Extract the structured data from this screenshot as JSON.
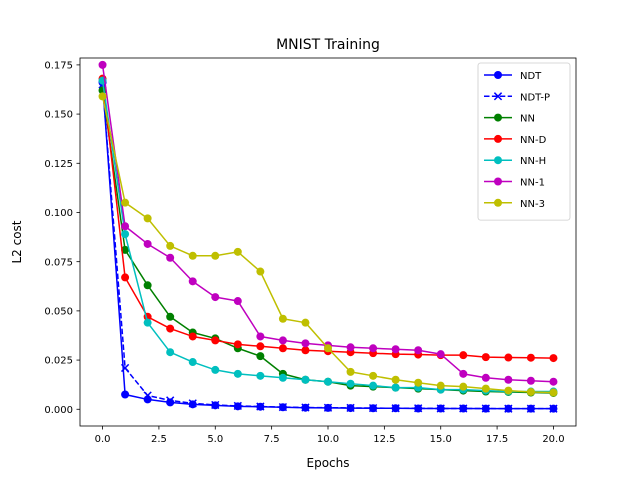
{
  "chart_data": {
    "type": "line",
    "title": "MNIST Training",
    "xlabel": "Epochs",
    "ylabel": "L2 cost",
    "xlim": [
      -1,
      21
    ],
    "ylim": [
      -0.0085,
      0.1785
    ],
    "xticks": [
      0.0,
      2.5,
      5.0,
      7.5,
      10.0,
      12.5,
      15.0,
      17.5,
      20.0
    ],
    "xtick_labels": [
      "0.0",
      "2.5",
      "5.0",
      "7.5",
      "10.0",
      "12.5",
      "15.0",
      "17.5",
      "20.0"
    ],
    "yticks": [
      0.0,
      0.025,
      0.05,
      0.075,
      0.1,
      0.125,
      0.15,
      0.175
    ],
    "ytick_labels": [
      "0.000",
      "0.025",
      "0.050",
      "0.075",
      "0.100",
      "0.125",
      "0.150",
      "0.175"
    ],
    "grid": false,
    "legend_position": "top-right",
    "x": [
      0,
      1,
      2,
      3,
      4,
      5,
      6,
      7,
      8,
      9,
      10,
      11,
      12,
      13,
      14,
      15,
      16,
      17,
      18,
      19,
      20
    ],
    "series": [
      {
        "name": "NDT",
        "color": "#0000ff",
        "marker": "circle",
        "linestyle": "solid",
        "values": [
          0.166,
          0.0075,
          0.005,
          0.0035,
          0.0025,
          0.002,
          0.0015,
          0.0013,
          0.001,
          0.0008,
          0.0007,
          0.0006,
          0.0005,
          0.0005,
          0.0004,
          0.0004,
          0.0004,
          0.0003,
          0.0003,
          0.0003,
          0.0003
        ]
      },
      {
        "name": "NDT-P",
        "color": "#0000ff",
        "marker": "x",
        "linestyle": "dashed",
        "values": [
          0.165,
          0.021,
          0.007,
          0.0045,
          0.003,
          0.0022,
          0.0017,
          0.0014,
          0.0011,
          0.0009,
          0.0008,
          0.0007,
          0.0006,
          0.0005,
          0.0005,
          0.0004,
          0.0004,
          0.0004,
          0.0003,
          0.0003,
          0.0003
        ]
      },
      {
        "name": "NN",
        "color": "#008000",
        "marker": "circle",
        "linestyle": "solid",
        "values": [
          0.162,
          0.081,
          0.063,
          0.047,
          0.039,
          0.036,
          0.031,
          0.027,
          0.018,
          0.015,
          0.014,
          0.012,
          0.0115,
          0.011,
          0.0105,
          0.01,
          0.0095,
          0.009,
          0.0088,
          0.0085,
          0.0083
        ]
      },
      {
        "name": "NN-D",
        "color": "#ff0000",
        "marker": "circle",
        "linestyle": "solid",
        "values": [
          0.168,
          0.067,
          0.047,
          0.041,
          0.037,
          0.035,
          0.033,
          0.032,
          0.031,
          0.03,
          0.0295,
          0.029,
          0.0285,
          0.028,
          0.0278,
          0.0275,
          0.0275,
          0.0265,
          0.0263,
          0.0262,
          0.026
        ]
      },
      {
        "name": "NN-H",
        "color": "#00bfbf",
        "marker": "circle",
        "linestyle": "solid",
        "values": [
          0.167,
          0.089,
          0.044,
          0.029,
          0.024,
          0.02,
          0.018,
          0.017,
          0.016,
          0.015,
          0.014,
          0.013,
          0.012,
          0.011,
          0.011,
          0.01,
          0.01,
          0.0095,
          0.009,
          0.009,
          0.009
        ]
      },
      {
        "name": "NN-1",
        "color": "#bf00bf",
        "marker": "circle",
        "linestyle": "solid",
        "values": [
          0.175,
          0.093,
          0.084,
          0.077,
          0.065,
          0.057,
          0.055,
          0.037,
          0.035,
          0.0335,
          0.0325,
          0.0315,
          0.031,
          0.0305,
          0.03,
          0.028,
          0.018,
          0.016,
          0.015,
          0.0145,
          0.014
        ]
      },
      {
        "name": "NN-3",
        "color": "#bfbf00",
        "marker": "circle",
        "linestyle": "solid",
        "values": [
          0.159,
          0.105,
          0.097,
          0.083,
          0.078,
          0.078,
          0.08,
          0.07,
          0.046,
          0.044,
          0.031,
          0.019,
          0.017,
          0.015,
          0.0135,
          0.012,
          0.0115,
          0.0105,
          0.0095,
          0.0088,
          0.0085
        ]
      }
    ]
  }
}
